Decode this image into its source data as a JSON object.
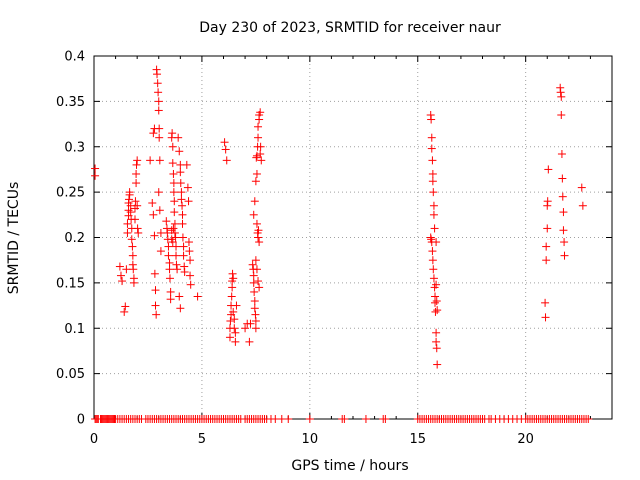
{
  "chart_data": {
    "type": "scatter",
    "title": "Day 230 of 2023, SRMTID for receiver naur",
    "xlabel": "GPS time / hours",
    "ylabel": "SRMTID / TECUs",
    "xlim": [
      0,
      24
    ],
    "ylim": [
      0,
      0.4
    ],
    "xticks": [
      0,
      5,
      10,
      15,
      20
    ],
    "xtick_labels": [
      "0",
      "5",
      "10",
      "15",
      "20"
    ],
    "yticks": [
      0,
      0.05,
      0.1,
      0.15,
      0.2,
      0.25,
      0.3,
      0.35,
      0.4
    ],
    "ytick_labels": [
      "0",
      "0.05",
      "0.1",
      "0.15",
      "0.2",
      "0.25",
      "0.3",
      "0.35",
      "0.4"
    ],
    "grid": true,
    "legend": null,
    "marker": "plus",
    "color": "#ff0000",
    "series": [
      {
        "name": "SRMTID",
        "points": [
          [
            0.05,
            0.276
          ],
          [
            0.05,
            0.268
          ],
          [
            1.2,
            0.168
          ],
          [
            1.25,
            0.158
          ],
          [
            1.3,
            0.152
          ],
          [
            1.4,
            0.118
          ],
          [
            1.45,
            0.124
          ],
          [
            1.5,
            0.165
          ],
          [
            1.55,
            0.205
          ],
          [
            1.55,
            0.215
          ],
          [
            1.6,
            0.224
          ],
          [
            1.6,
            0.23
          ],
          [
            1.6,
            0.238
          ],
          [
            1.62,
            0.242
          ],
          [
            1.65,
            0.247
          ],
          [
            1.65,
            0.25
          ],
          [
            1.7,
            0.235
          ],
          [
            1.7,
            0.228
          ],
          [
            1.72,
            0.22
          ],
          [
            1.75,
            0.21
          ],
          [
            1.75,
            0.198
          ],
          [
            1.78,
            0.19
          ],
          [
            1.8,
            0.18
          ],
          [
            1.8,
            0.17
          ],
          [
            1.82,
            0.165
          ],
          [
            1.85,
            0.155
          ],
          [
            1.85,
            0.15
          ],
          [
            1.9,
            0.22
          ],
          [
            1.9,
            0.232
          ],
          [
            1.92,
            0.24
          ],
          [
            1.95,
            0.26
          ],
          [
            1.95,
            0.27
          ],
          [
            1.97,
            0.28
          ],
          [
            2.0,
            0.285
          ],
          [
            2.0,
            0.235
          ],
          [
            2.02,
            0.21
          ],
          [
            2.05,
            0.205
          ],
          [
            2.6,
            0.285
          ],
          [
            2.7,
            0.238
          ],
          [
            2.75,
            0.225
          ],
          [
            2.8,
            0.202
          ],
          [
            2.82,
            0.16
          ],
          [
            2.85,
            0.142
          ],
          [
            2.85,
            0.125
          ],
          [
            2.88,
            0.115
          ],
          [
            2.75,
            0.315
          ],
          [
            2.8,
            0.32
          ],
          [
            2.9,
            0.385
          ],
          [
            2.92,
            0.38
          ],
          [
            2.95,
            0.37
          ],
          [
            2.97,
            0.36
          ],
          [
            3.0,
            0.35
          ],
          [
            3.0,
            0.34
          ],
          [
            3.02,
            0.32
          ],
          [
            3.02,
            0.31
          ],
          [
            3.05,
            0.285
          ],
          [
            3.0,
            0.25
          ],
          [
            3.05,
            0.23
          ],
          [
            3.1,
            0.205
          ],
          [
            3.1,
            0.185
          ],
          [
            3.35,
            0.218
          ],
          [
            3.38,
            0.21
          ],
          [
            3.4,
            0.205
          ],
          [
            3.42,
            0.198
          ],
          [
            3.45,
            0.19
          ],
          [
            3.45,
            0.18
          ],
          [
            3.5,
            0.172
          ],
          [
            3.5,
            0.165
          ],
          [
            3.52,
            0.155
          ],
          [
            3.55,
            0.14
          ],
          [
            3.55,
            0.132
          ],
          [
            3.6,
            0.31
          ],
          [
            3.62,
            0.315
          ],
          [
            3.65,
            0.3
          ],
          [
            3.65,
            0.282
          ],
          [
            3.68,
            0.27
          ],
          [
            3.7,
            0.26
          ],
          [
            3.7,
            0.25
          ],
          [
            3.72,
            0.24
          ],
          [
            3.72,
            0.228
          ],
          [
            3.75,
            0.215
          ],
          [
            3.75,
            0.205
          ],
          [
            3.78,
            0.2
          ],
          [
            3.8,
            0.19
          ],
          [
            3.8,
            0.18
          ],
          [
            3.82,
            0.17
          ],
          [
            3.85,
            0.165
          ],
          [
            3.6,
            0.198
          ],
          [
            3.6,
            0.208
          ],
          [
            3.65,
            0.195
          ],
          [
            3.68,
            0.21
          ],
          [
            3.9,
            0.31
          ],
          [
            3.95,
            0.295
          ],
          [
            4.0,
            0.28
          ],
          [
            4.0,
            0.272
          ],
          [
            4.02,
            0.26
          ],
          [
            4.05,
            0.25
          ],
          [
            4.05,
            0.242
          ],
          [
            4.08,
            0.235
          ],
          [
            4.1,
            0.225
          ],
          [
            4.1,
            0.215
          ],
          [
            4.12,
            0.2
          ],
          [
            4.15,
            0.19
          ],
          [
            4.15,
            0.18
          ],
          [
            4.18,
            0.168
          ],
          [
            4.2,
            0.162
          ],
          [
            3.95,
            0.135
          ],
          [
            4.0,
            0.122
          ],
          [
            4.3,
            0.28
          ],
          [
            4.35,
            0.255
          ],
          [
            4.38,
            0.24
          ],
          [
            4.4,
            0.195
          ],
          [
            4.42,
            0.185
          ],
          [
            4.45,
            0.175
          ],
          [
            4.45,
            0.158
          ],
          [
            4.48,
            0.148
          ],
          [
            4.8,
            0.135
          ],
          [
            6.05,
            0.305
          ],
          [
            6.1,
            0.297
          ],
          [
            6.15,
            0.285
          ],
          [
            6.3,
            0.09
          ],
          [
            6.3,
            0.1
          ],
          [
            6.32,
            0.108
          ],
          [
            6.35,
            0.115
          ],
          [
            6.35,
            0.125
          ],
          [
            6.38,
            0.135
          ],
          [
            6.4,
            0.145
          ],
          [
            6.4,
            0.152
          ],
          [
            6.42,
            0.16
          ],
          [
            6.45,
            0.155
          ],
          [
            6.45,
            0.118
          ],
          [
            6.5,
            0.11
          ],
          [
            6.5,
            0.1
          ],
          [
            6.55,
            0.095
          ],
          [
            6.55,
            0.085
          ],
          [
            6.6,
            0.125
          ],
          [
            7.0,
            0.1
          ],
          [
            7.1,
            0.105
          ],
          [
            7.2,
            0.085
          ],
          [
            7.25,
            0.105
          ],
          [
            7.35,
            0.17
          ],
          [
            7.38,
            0.165
          ],
          [
            7.4,
            0.158
          ],
          [
            7.4,
            0.15
          ],
          [
            7.42,
            0.14
          ],
          [
            7.45,
            0.13
          ],
          [
            7.45,
            0.122
          ],
          [
            7.48,
            0.115
          ],
          [
            7.5,
            0.108
          ],
          [
            7.5,
            0.1
          ],
          [
            7.4,
            0.225
          ],
          [
            7.45,
            0.24
          ],
          [
            7.5,
            0.262
          ],
          [
            7.55,
            0.27
          ],
          [
            7.52,
            0.288
          ],
          [
            7.55,
            0.29
          ],
          [
            7.58,
            0.3
          ],
          [
            7.6,
            0.31
          ],
          [
            7.6,
            0.322
          ],
          [
            7.65,
            0.33
          ],
          [
            7.65,
            0.335
          ],
          [
            7.7,
            0.338
          ],
          [
            7.55,
            0.215
          ],
          [
            7.58,
            0.205
          ],
          [
            7.6,
            0.2
          ],
          [
            7.62,
            0.208
          ],
          [
            7.65,
            0.195
          ],
          [
            7.5,
            0.175
          ],
          [
            7.55,
            0.165
          ],
          [
            7.6,
            0.152
          ],
          [
            7.65,
            0.145
          ],
          [
            7.7,
            0.292
          ],
          [
            7.72,
            0.3
          ],
          [
            7.75,
            0.285
          ],
          [
            15.6,
            0.335
          ],
          [
            15.62,
            0.33
          ],
          [
            15.65,
            0.31
          ],
          [
            15.65,
            0.298
          ],
          [
            15.68,
            0.285
          ],
          [
            15.7,
            0.27
          ],
          [
            15.7,
            0.262
          ],
          [
            15.72,
            0.25
          ],
          [
            15.75,
            0.235
          ],
          [
            15.75,
            0.225
          ],
          [
            15.78,
            0.21
          ],
          [
            15.6,
            0.2
          ],
          [
            15.62,
            0.198
          ],
          [
            15.65,
            0.195
          ],
          [
            15.68,
            0.185
          ],
          [
            15.7,
            0.175
          ],
          [
            15.72,
            0.165
          ],
          [
            15.75,
            0.155
          ],
          [
            15.78,
            0.145
          ],
          [
            15.8,
            0.135
          ],
          [
            15.8,
            0.128
          ],
          [
            15.82,
            0.118
          ],
          [
            15.85,
            0.095
          ],
          [
            15.85,
            0.085
          ],
          [
            15.88,
            0.078
          ],
          [
            15.9,
            0.06
          ],
          [
            15.85,
            0.195
          ],
          [
            15.85,
            0.148
          ],
          [
            15.88,
            0.13
          ],
          [
            15.9,
            0.12
          ],
          [
            20.9,
            0.128
          ],
          [
            20.92,
            0.112
          ],
          [
            20.95,
            0.175
          ],
          [
            20.95,
            0.19
          ],
          [
            21.0,
            0.21
          ],
          [
            21.0,
            0.235
          ],
          [
            21.02,
            0.24
          ],
          [
            21.05,
            0.275
          ],
          [
            21.6,
            0.365
          ],
          [
            21.62,
            0.36
          ],
          [
            21.65,
            0.355
          ],
          [
            21.65,
            0.335
          ],
          [
            21.68,
            0.292
          ],
          [
            21.7,
            0.265
          ],
          [
            21.72,
            0.245
          ],
          [
            21.75,
            0.228
          ],
          [
            21.75,
            0.208
          ],
          [
            21.78,
            0.195
          ],
          [
            21.8,
            0.18
          ],
          [
            22.6,
            0.255
          ],
          [
            22.65,
            0.235
          ]
        ],
        "zero_times": [
          0.05,
          0.1,
          0.15,
          0.2,
          0.3,
          0.35,
          0.4,
          0.45,
          0.5,
          0.55,
          0.6,
          0.65,
          0.7,
          0.75,
          0.8,
          0.85,
          0.9,
          0.95,
          1.0,
          1.1,
          1.2,
          1.3,
          1.4,
          1.5,
          1.6,
          1.7,
          1.8,
          1.9,
          2.0,
          2.1,
          2.2,
          2.4,
          2.5,
          2.6,
          2.7,
          2.8,
          2.9,
          3.0,
          3.1,
          3.2,
          3.3,
          3.4,
          3.5,
          3.6,
          3.7,
          3.8,
          3.9,
          4.0,
          4.1,
          4.2,
          4.3,
          4.4,
          4.5,
          4.6,
          4.7,
          4.8,
          4.9,
          5.0,
          5.1,
          5.2,
          5.3,
          5.4,
          5.5,
          5.6,
          5.7,
          5.8,
          5.9,
          6.0,
          6.1,
          6.2,
          6.3,
          6.4,
          6.5,
          6.6,
          6.7,
          6.8,
          7.0,
          7.1,
          7.2,
          7.3,
          7.4,
          7.5,
          7.6,
          7.7,
          7.8,
          7.9,
          8.0,
          8.2,
          8.4,
          8.7,
          9.0,
          10.0,
          11.5,
          11.6,
          12.6,
          13.4,
          13.5,
          15.0,
          15.1,
          15.2,
          15.3,
          15.4,
          15.5,
          15.6,
          15.7,
          15.8,
          15.9,
          16.0,
          16.1,
          16.2,
          16.3,
          16.4,
          16.5,
          16.6,
          16.7,
          16.8,
          16.9,
          17.0,
          17.1,
          17.2,
          17.3,
          17.4,
          17.5,
          17.6,
          17.7,
          17.8,
          17.9,
          18.0,
          18.1,
          18.3,
          18.4,
          18.6,
          18.8,
          19.0,
          19.2,
          19.4,
          19.6,
          19.8,
          20.0,
          20.1,
          20.2,
          20.3,
          20.4,
          20.5,
          20.6,
          20.7,
          20.8,
          20.9,
          21.0,
          21.1,
          21.2,
          21.3,
          21.4,
          21.5,
          21.6,
          21.7,
          21.8,
          21.9,
          22.0,
          22.1,
          22.2,
          22.3,
          22.4,
          22.5,
          22.6,
          22.7,
          22.8,
          22.9
        ]
      }
    ]
  }
}
